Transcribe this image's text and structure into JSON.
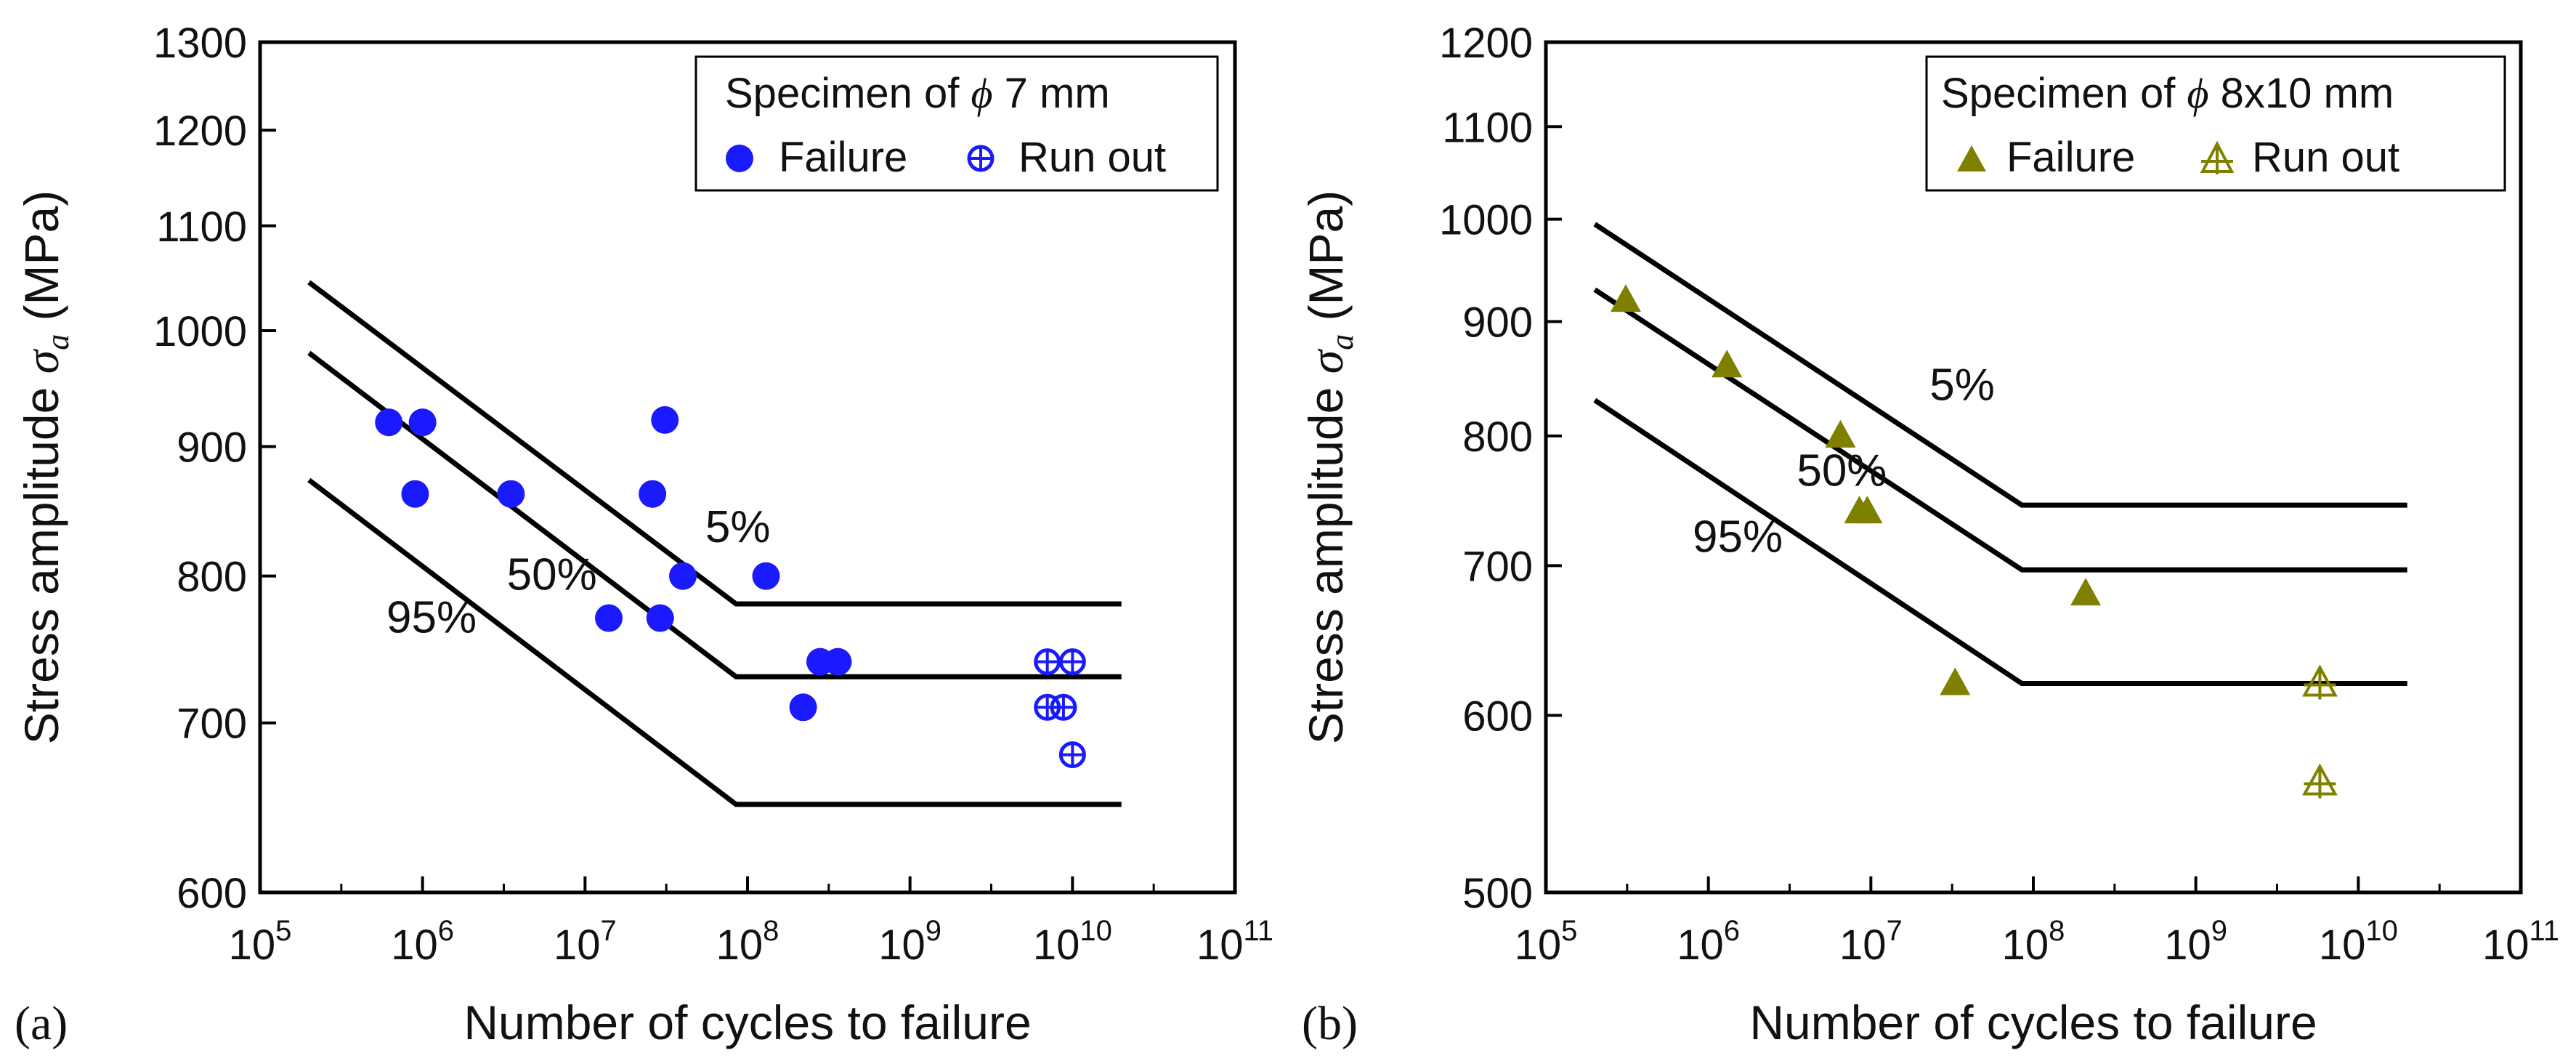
{
  "chart_data": [
    {
      "type": "scatter",
      "panel_label": "(a)",
      "xlabel": "Number of cycles to failure",
      "ylabel": "Stress amplitude σa (MPa)",
      "ylabel_main": "Stress amplitude ",
      "ylabel_symbol": "σ",
      "ylabel_sub": "a",
      "ylabel_unit": " (MPa)",
      "xscale": "log",
      "yscale": "log",
      "xlim": [
        100000,
        100000000000
      ],
      "ylim": [
        600,
        1300
      ],
      "xticks": [
        {
          "value": 100000,
          "base": "10",
          "exp": "5"
        },
        {
          "value": 1000000,
          "base": "10",
          "exp": "6"
        },
        {
          "value": 10000000,
          "base": "10",
          "exp": "7"
        },
        {
          "value": 100000000,
          "base": "10",
          "exp": "8"
        },
        {
          "value": 1000000000,
          "base": "10",
          "exp": "9"
        },
        {
          "value": 10000000000,
          "base": "10",
          "exp": "10"
        },
        {
          "value": 100000000000,
          "base": "10",
          "exp": "11"
        }
      ],
      "yticks": [
        600,
        700,
        800,
        900,
        1000,
        1100,
        1200,
        1300
      ],
      "color": "#1a1aff",
      "marker_failure": "circle",
      "marker_runout": "crossed-circle",
      "legend": {
        "title": "Specimen of ϕ 7 mm",
        "title_text": "Specimen of ",
        "title_symbol": "ϕ",
        "title_rest": " 7 mm",
        "failure_label": "Failure",
        "runout_label": "Run out",
        "position": "top-right"
      },
      "series": [
        {
          "name": "Failure",
          "points": [
            [
              620000,
              920
            ],
            [
              1000000,
              920
            ],
            [
              900000,
              862
            ],
            [
              3500000,
              862
            ],
            [
              14000000,
              770
            ],
            [
              26000000,
              862
            ],
            [
              29000000,
              770
            ],
            [
              31000000,
              922
            ],
            [
              40000000,
              800
            ],
            [
              130000000,
              800
            ],
            [
              220000000,
              710
            ],
            [
              280000000,
              740
            ],
            [
              360000000,
              740
            ]
          ]
        },
        {
          "name": "Run out",
          "points": [
            [
              7000000000,
              740
            ],
            [
              10000000000,
              740
            ],
            [
              7000000000,
              710
            ],
            [
              8800000000,
              710
            ],
            [
              10000000000,
              680
            ]
          ]
        }
      ],
      "curves": [
        {
          "label": "5%",
          "points": [
            [
              200000,
              1045
            ],
            [
              85000000,
              780
            ],
            [
              20000000000,
              780
            ]
          ],
          "label_at": [
            55000000,
            825
          ]
        },
        {
          "label": "50%",
          "points": [
            [
              200000,
              980
            ],
            [
              85000000,
              730
            ],
            [
              20000000000,
              730
            ]
          ],
          "label_at": [
            3300000,
            790
          ]
        },
        {
          "label": "95%",
          "points": [
            [
              200000,
              873
            ],
            [
              85000000,
              650
            ],
            [
              20000000000,
              650
            ]
          ],
          "label_at": [
            600000,
            760
          ]
        }
      ]
    },
    {
      "type": "scatter",
      "panel_label": "(b)",
      "xlabel": "Number of cycles to failure",
      "ylabel": "Stress amplitude σa (MPa)",
      "ylabel_main": "Stress amplitude ",
      "ylabel_symbol": "σ",
      "ylabel_sub": "a",
      "ylabel_unit": " (MPa)",
      "xscale": "log",
      "yscale": "log",
      "xlim": [
        100000,
        100000000000
      ],
      "ylim": [
        500,
        1200
      ],
      "xticks": [
        {
          "value": 100000,
          "base": "10",
          "exp": "5"
        },
        {
          "value": 1000000,
          "base": "10",
          "exp": "6"
        },
        {
          "value": 10000000,
          "base": "10",
          "exp": "7"
        },
        {
          "value": 100000000,
          "base": "10",
          "exp": "8"
        },
        {
          "value": 1000000000,
          "base": "10",
          "exp": "9"
        },
        {
          "value": 10000000000,
          "base": "10",
          "exp": "10"
        },
        {
          "value": 100000000000,
          "base": "10",
          "exp": "11"
        }
      ],
      "yticks": [
        500,
        600,
        700,
        800,
        900,
        1000,
        1100,
        1200
      ],
      "color": "#808000",
      "marker_failure": "triangle",
      "marker_runout": "crossed-triangle",
      "legend": {
        "title": "Specimen of ϕ 8x10 mm",
        "title_text": "Specimen of ",
        "title_symbol": "ϕ",
        "title_rest": " 8x10 mm",
        "failure_label": "Failure",
        "runout_label": "Run out",
        "position": "top-right"
      },
      "series": [
        {
          "name": "Failure",
          "points": [
            [
              310000,
              920
            ],
            [
              1300000,
              860
            ],
            [
              6500000,
              800
            ],
            [
              8500000,
              740
            ],
            [
              9500000,
              740
            ],
            [
              33000000,
              620
            ],
            [
              210000000,
              680
            ]
          ]
        },
        {
          "name": "Run out",
          "points": [
            [
              5800000000,
              620
            ],
            [
              5800000000,
              560
            ]
          ]
        }
      ],
      "curves": [
        {
          "label": "5%",
          "points": [
            [
              200000,
              995
            ],
            [
              85000000,
              745
            ],
            [
              20000000000,
              745
            ]
          ],
          "label_at": [
            23000000,
            830
          ]
        },
        {
          "label": "50%",
          "points": [
            [
              200000,
              930
            ],
            [
              85000000,
              697
            ],
            [
              20000000000,
              697
            ]
          ],
          "label_at": [
            3500000,
            760
          ]
        },
        {
          "label": "95%",
          "points": [
            [
              200000,
              830
            ],
            [
              85000000,
              620
            ],
            [
              20000000000,
              620
            ]
          ],
          "label_at": [
            800000,
            710
          ]
        }
      ]
    }
  ]
}
